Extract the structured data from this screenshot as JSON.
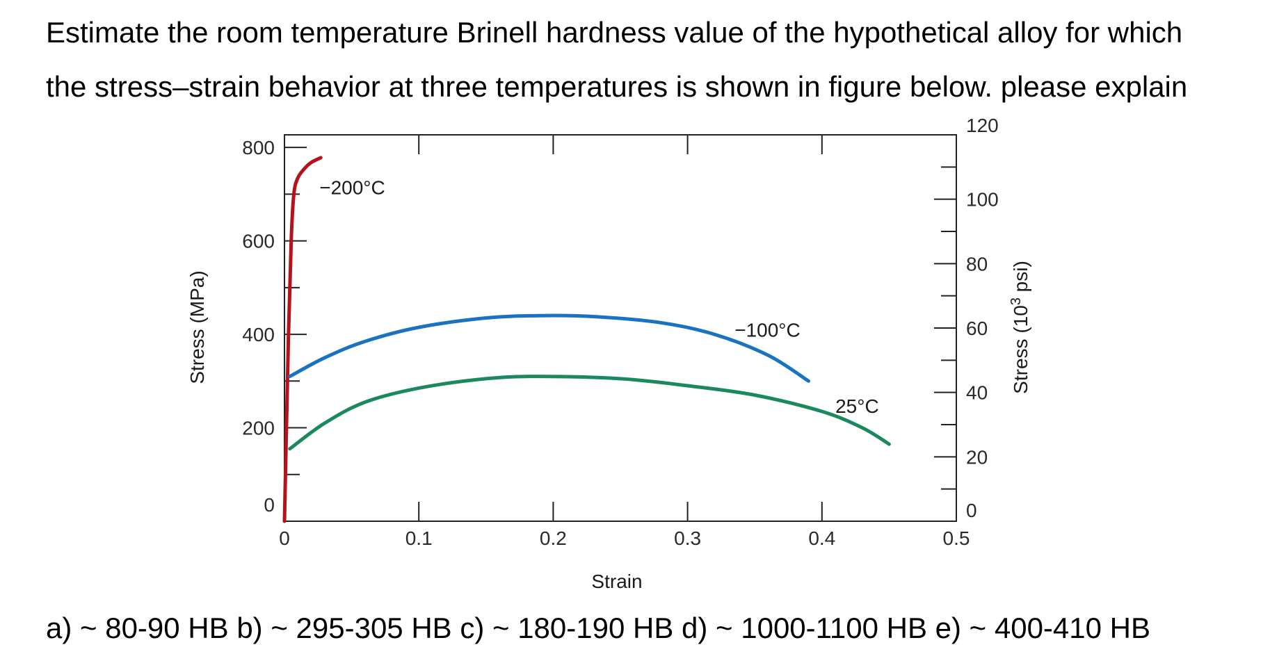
{
  "question": {
    "line1": "Estimate the room temperature Brinell hardness value of the hypothetical alloy for which",
    "line2": "the stress–strain behavior at three temperatures is shown in figure below. please explain"
  },
  "options": {
    "text": "a) ~ 80-90 HB b) ~ 295-305 HB c) ~ 180-190 HB d) ~ 1000-1100 HB e) ~ 400-410 HB"
  },
  "chart_data": {
    "type": "line",
    "title": "",
    "xlabel": "Strain",
    "ylabel": "Stress (MPa)",
    "ylabel_right": "Stress (10³ psi)",
    "xlim": [
      0,
      0.5
    ],
    "ylim": [
      0,
      827
    ],
    "ylim_right": [
      0,
      120
    ],
    "x_ticks": [
      "0",
      "0.1",
      "0.2",
      "0.3",
      "0.4",
      "0.5"
    ],
    "y_ticks": [
      "0",
      "200",
      "400",
      "600",
      "800"
    ],
    "y_ticks_right": [
      "0",
      "20",
      "40",
      "60",
      "80",
      "100",
      "120"
    ],
    "grid": false,
    "legend": "none",
    "series": [
      {
        "name": "−200°C",
        "color": "#b5121b",
        "x": [
          0,
          0.003,
          0.005,
          0.007,
          0.01,
          0.015,
          0.02,
          0.027
        ],
        "y": [
          0,
          400,
          600,
          700,
          735,
          755,
          768,
          778
        ]
      },
      {
        "name": "−100°C",
        "color": "#1a73c0",
        "x": [
          0.004,
          0.03,
          0.06,
          0.1,
          0.15,
          0.19,
          0.23,
          0.28,
          0.32,
          0.36,
          0.39
        ],
        "y": [
          310,
          350,
          385,
          415,
          435,
          440,
          438,
          425,
          400,
          355,
          300
        ]
      },
      {
        "name": "25°C",
        "color": "#1a8a5e",
        "x": [
          0.004,
          0.03,
          0.06,
          0.1,
          0.15,
          0.19,
          0.25,
          0.3,
          0.35,
          0.4,
          0.43,
          0.45
        ],
        "y": [
          155,
          210,
          255,
          285,
          305,
          310,
          305,
          290,
          270,
          235,
          200,
          165
        ]
      }
    ]
  }
}
